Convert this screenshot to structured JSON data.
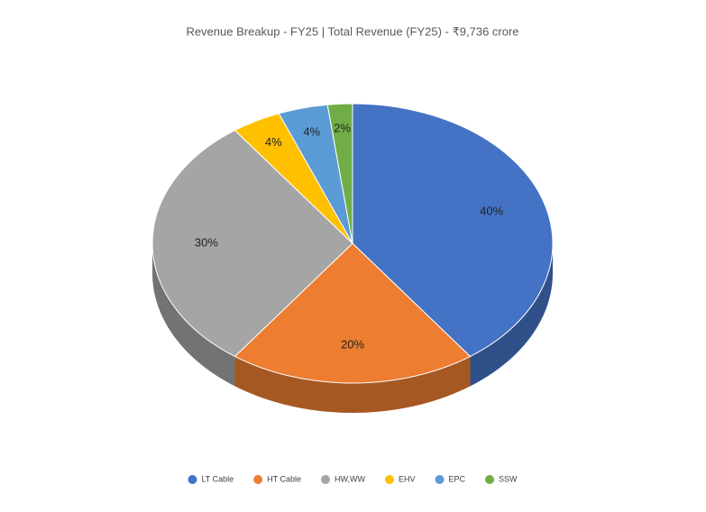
{
  "chart_data": {
    "type": "pie",
    "title": "Revenue Breakup - FY25 | Total Revenue (FY25) - ₹9,736 crore",
    "categories": [
      "LT Cable",
      "HT Cable",
      "HW,WW",
      "EHV",
      "EPC",
      "SSW"
    ],
    "values": [
      40,
      20,
      30,
      4,
      4,
      2
    ],
    "value_labels": [
      "40%",
      "20%",
      "30%",
      "4%",
      "4%",
      "2%"
    ],
    "colors": [
      "#4472c4",
      "#ed7d31",
      "#a5a5a5",
      "#ffc000",
      "#5b9bd5",
      "#70ad47"
    ],
    "legend": "bottom"
  }
}
